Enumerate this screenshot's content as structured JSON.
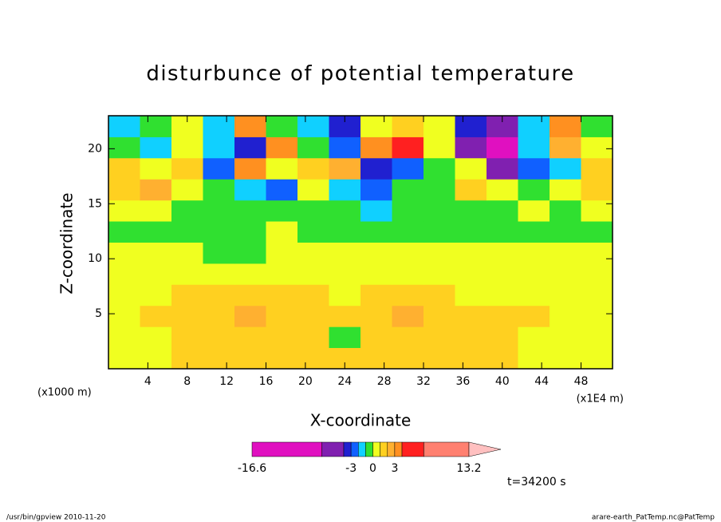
{
  "chart_data": {
    "type": "heatmap",
    "title": "disturbunce of potential temperature",
    "x_label": "X-coordinate",
    "y_label": "Z-coordinate",
    "x_unit_label": "(x1E4 m)",
    "y_unit_label": "(x1000 m)",
    "annotation": "t=34200 s",
    "xlim": [
      0,
      51.2
    ],
    "ylim": [
      0,
      23
    ],
    "xticks": [
      4,
      8,
      12,
      16,
      20,
      24,
      28,
      32,
      36,
      40,
      44,
      48
    ],
    "yticks": [
      5,
      10,
      15,
      20
    ],
    "x": [
      1.6,
      4.8,
      8,
      11.2,
      14.4,
      17.6,
      20.8,
      24,
      27.2,
      30.4,
      33.6,
      36.8,
      40,
      43.2,
      46.4,
      49.6
    ],
    "y": [
      0.96,
      2.88,
      4.79,
      6.71,
      8.63,
      10.54,
      12.46,
      14.38,
      16.29,
      18.21,
      20.13,
      22.04
    ],
    "z": [
      [
        0.5,
        0.5,
        1.5,
        1.5,
        1.5,
        1.5,
        1.5,
        1.5,
        1.5,
        1.5,
        1.5,
        1.5,
        1.5,
        0.5,
        0.5,
        0.5
      ],
      [
        0.5,
        0.5,
        1.5,
        1.5,
        1.5,
        1.5,
        1.5,
        -0.5,
        1.5,
        1.5,
        1.5,
        1.5,
        1.5,
        0.5,
        0.5,
        0.5
      ],
      [
        0.5,
        1.5,
        1.5,
        1.5,
        2.5,
        1.5,
        1.5,
        1.5,
        1.5,
        2.5,
        1.5,
        1.5,
        1.5,
        1.5,
        0.5,
        0.5
      ],
      [
        0.5,
        0.5,
        1.5,
        1.5,
        1.5,
        1.5,
        1.5,
        0.5,
        1.5,
        1.5,
        1.5,
        0.5,
        0.5,
        0.5,
        0.5,
        0.5
      ],
      [
        0.5,
        0.5,
        0.5,
        0.5,
        0.5,
        0.5,
        0.5,
        0.5,
        0.5,
        0.5,
        0.5,
        0.5,
        0.5,
        0.5,
        0.5,
        0.5
      ],
      [
        0.5,
        0.5,
        0.5,
        -0.5,
        -0.5,
        0.5,
        0.5,
        0.5,
        0.5,
        0.5,
        0.5,
        0.5,
        0.5,
        0.5,
        0.5,
        0.5
      ],
      [
        -0.5,
        -0.5,
        -0.5,
        -0.5,
        -0.5,
        0.5,
        -0.5,
        -0.5,
        -0.5,
        -0.5,
        -0.5,
        -0.5,
        -0.5,
        -0.5,
        -0.5,
        -0.5
      ],
      [
        0.5,
        0.5,
        -0.5,
        -0.5,
        -0.5,
        -0.5,
        -0.5,
        -0.5,
        -1.5,
        -0.5,
        -0.5,
        -0.5,
        -0.5,
        0.5,
        -0.5,
        0.5
      ],
      [
        1.5,
        2.5,
        0.5,
        -0.5,
        -1.5,
        -2.5,
        0.5,
        -1.5,
        -2.5,
        -0.5,
        -0.5,
        1.5,
        0.5,
        -0.5,
        0.5,
        1.5
      ],
      [
        1.5,
        0.5,
        1.5,
        -2.5,
        3.5,
        0.5,
        1.5,
        2.5,
        -3.5,
        -2.5,
        -0.5,
        0.5,
        -5,
        -2.5,
        -1.5,
        1.5
      ],
      [
        -0.5,
        -1.5,
        0.5,
        -1.5,
        -3.5,
        3.5,
        -0.5,
        -2.5,
        3.5,
        5,
        0.5,
        -5,
        -7.5,
        -1.5,
        2.5,
        0.5
      ],
      [
        -1.5,
        -0.5,
        0.5,
        -1.5,
        3.5,
        -0.5,
        -1.5,
        -3.5,
        0.5,
        1.5,
        0.5,
        -3.5,
        -5,
        -1.5,
        3.5,
        -0.5
      ]
    ],
    "colorbar": {
      "levels": [
        -16.6,
        -7,
        -4,
        -3,
        -2,
        -1,
        0,
        1,
        2,
        3,
        4,
        7,
        13.2
      ],
      "colors": [
        "#e010c0",
        "#8020b0",
        "#2020d0",
        "#1060ff",
        "#10d0ff",
        "#30e030",
        "#f0ff20",
        "#ffd020",
        "#ffb030",
        "#ff9020",
        "#ff2020",
        "#ff8070"
      ],
      "extend_color": "#ffc0c0",
      "ticks": [
        -16.6,
        -3,
        0,
        3,
        13.2
      ]
    }
  },
  "footer": {
    "left": "/usr/bin/gpview  2010-11-20",
    "right": "arare-earth_PatTemp.nc@PatTemp"
  }
}
